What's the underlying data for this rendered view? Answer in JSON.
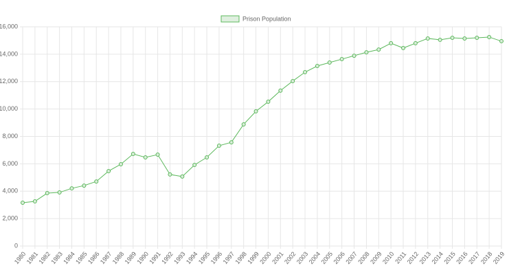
{
  "chart_data": {
    "type": "line",
    "categories": [
      "1980",
      "1981",
      "1982",
      "1983",
      "1984",
      "1985",
      "1986",
      "1987",
      "1988",
      "1989",
      "1990",
      "1991",
      "1992",
      "1993",
      "1994",
      "1995",
      "1996",
      "1997",
      "1998",
      "1999",
      "2000",
      "2001",
      "2002",
      "2003",
      "2004",
      "2005",
      "2006",
      "2007",
      "2008",
      "2009",
      "2010",
      "2011",
      "2012",
      "2013",
      "2014",
      "2015",
      "2016",
      "2017",
      "2018",
      "2019"
    ],
    "series": [
      {
        "name": "Prison Population",
        "color": "#5cb85c",
        "values": [
          3160,
          3260,
          3860,
          3910,
          4210,
          4410,
          4710,
          5470,
          5970,
          6720,
          6470,
          6670,
          5220,
          5070,
          5920,
          6470,
          7320,
          7570,
          8880,
          9830,
          10530,
          11340,
          12040,
          12690,
          13140,
          13390,
          13640,
          13890,
          14140,
          14340,
          14800,
          14450,
          14800,
          15150,
          15050,
          15200,
          15150,
          15200,
          15250,
          14950
        ]
      }
    ],
    "ylim": [
      0,
      16000
    ],
    "yticks": [
      0,
      {
        "value": 2000,
        "label": "2,000"
      },
      {
        "value": 4000,
        "label": "4,000"
      },
      {
        "value": 6000,
        "label": "6,000"
      },
      {
        "value": 8000,
        "label": "8,000"
      },
      {
        "value": 10000,
        "label": "10,000"
      },
      {
        "value": 12000,
        "label": "12,000"
      },
      {
        "value": 14000,
        "label": "14,000"
      },
      {
        "value": 16000,
        "label": "16,000"
      }
    ],
    "grid": true,
    "legend": "top"
  }
}
